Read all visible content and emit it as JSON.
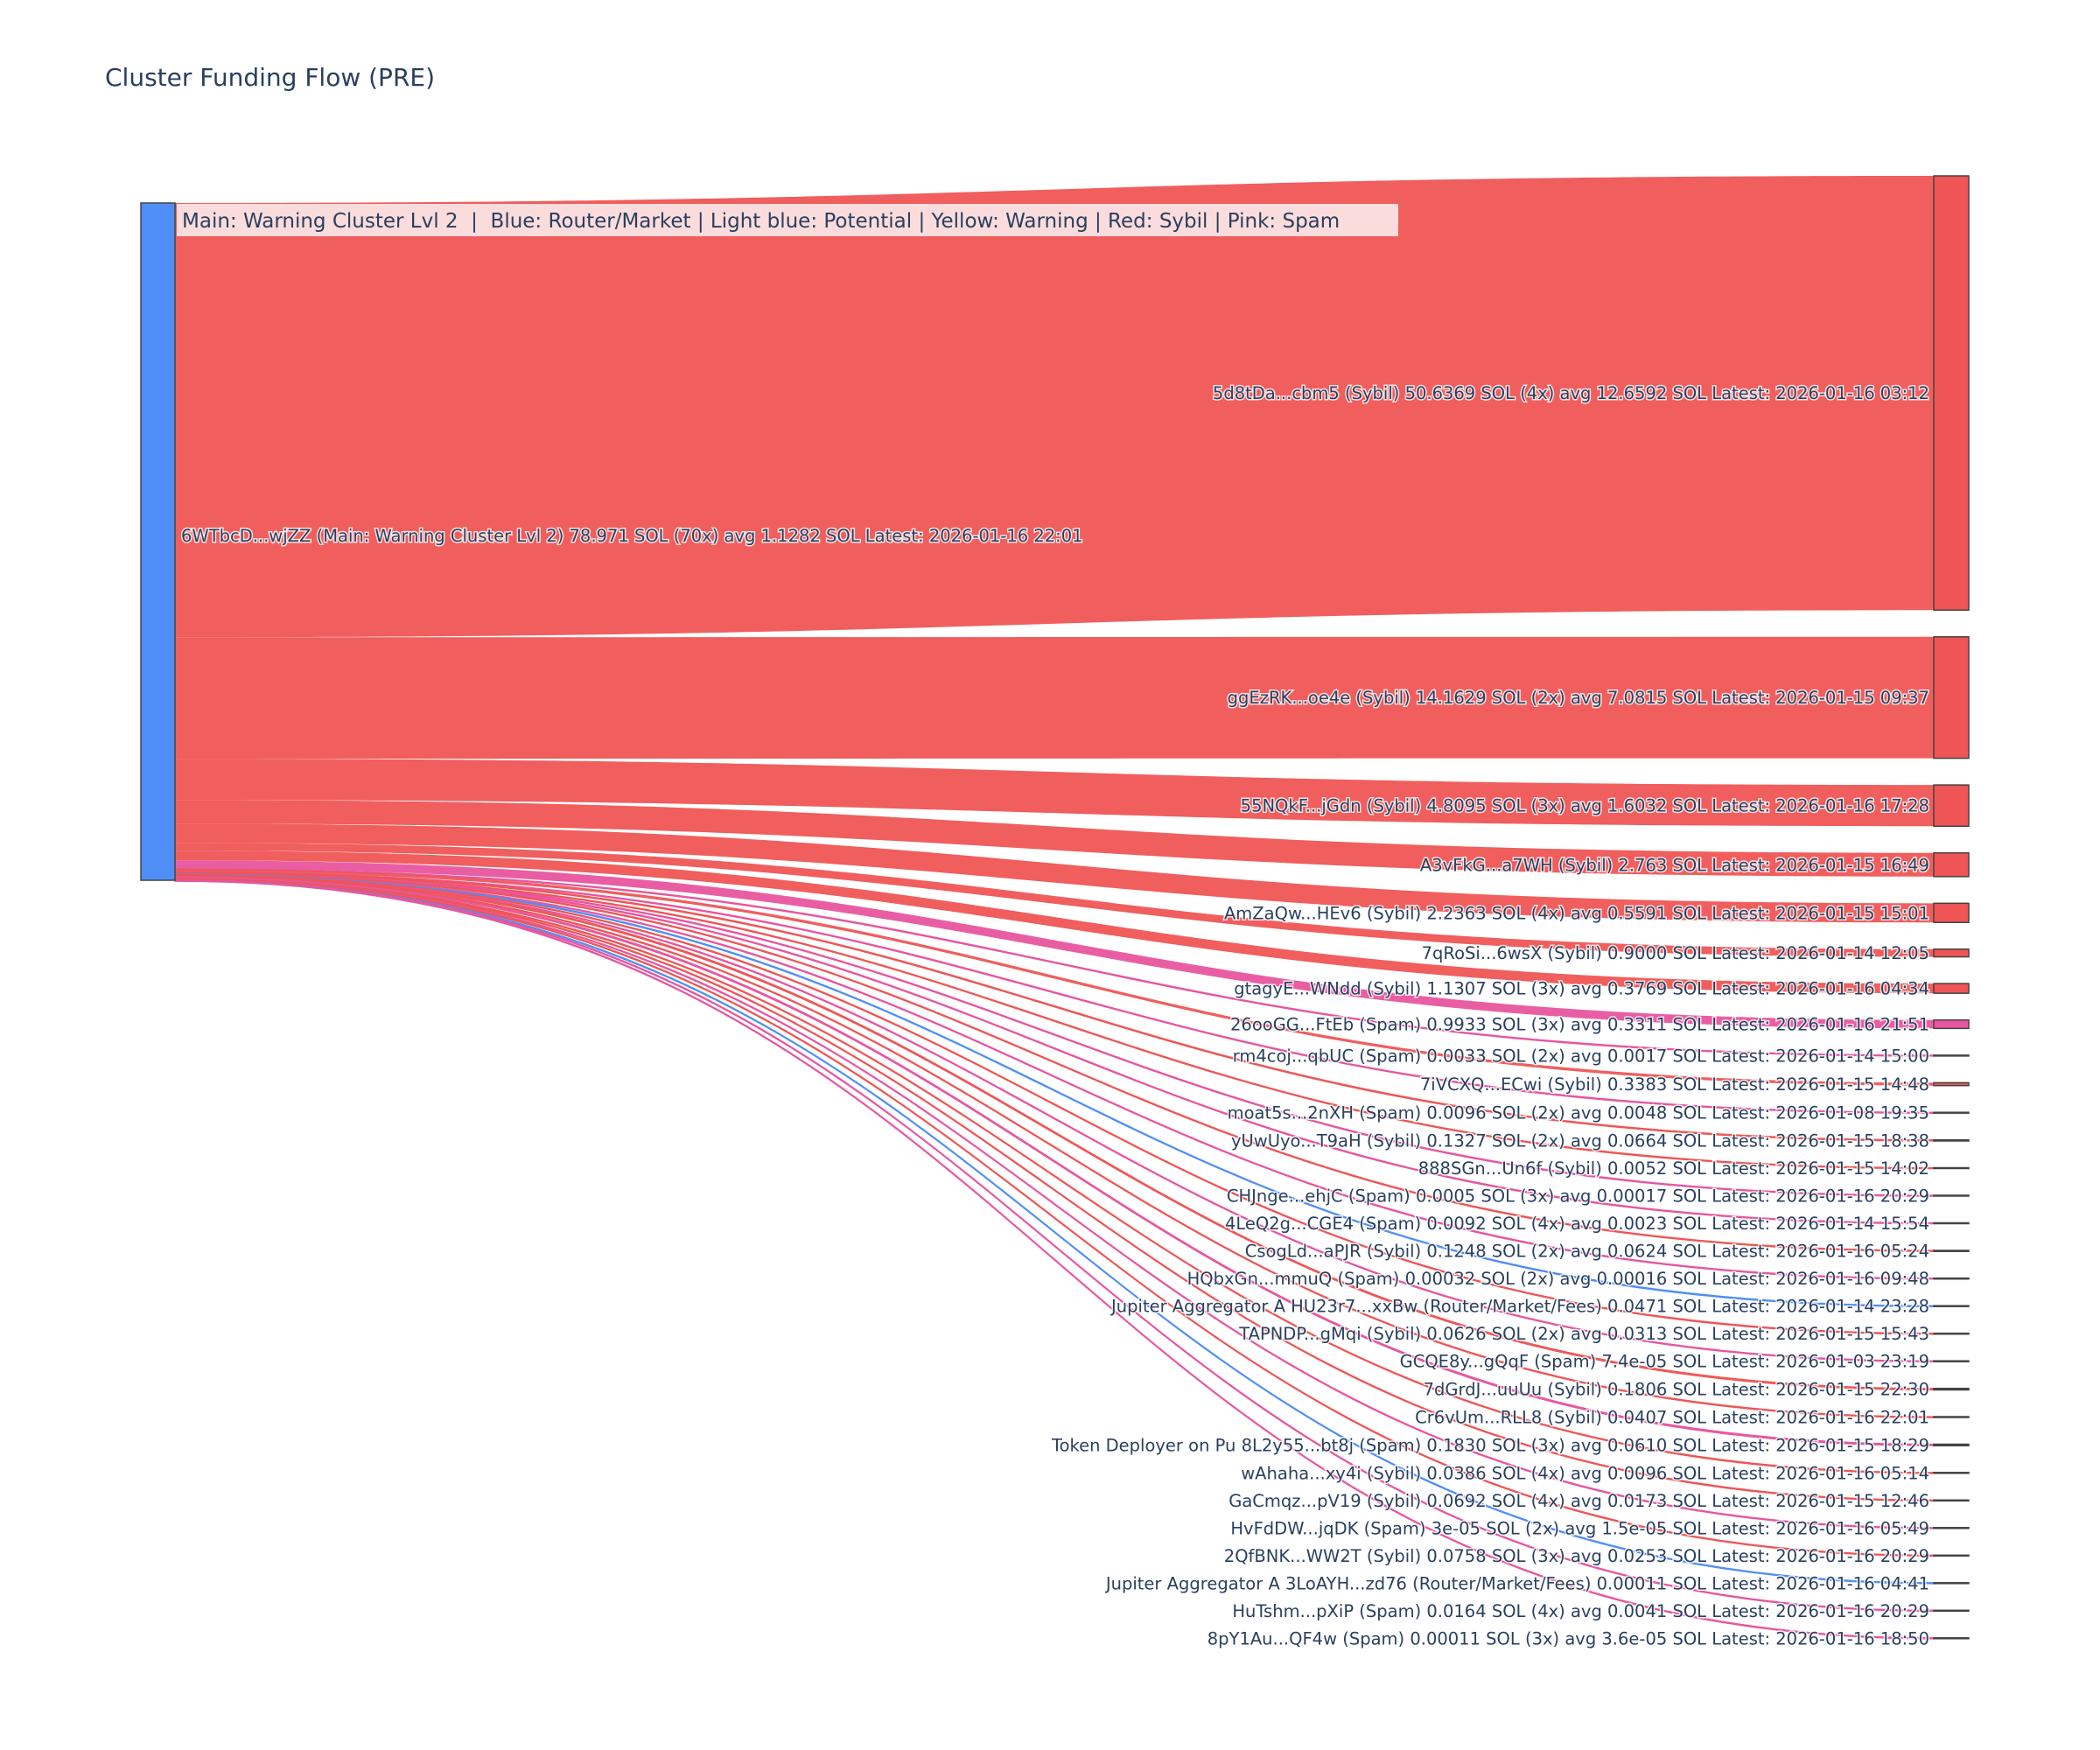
{
  "chart_data": {
    "type": "sankey",
    "title": "Cluster Funding Flow (PRE)",
    "legend_annotation": "Main: Warning Cluster Lvl 2  |  Blue: Router/Market | Light blue: Potential | Yellow: Warning | Red: Sybil | Pink: Spam",
    "category_colors": {
      "Main": "#4f8ef7",
      "Router": "#4f8ef7",
      "Sybil": "#ef5555",
      "Spam": "#e8559e"
    },
    "source": {
      "label": "6WTbcD...wjZZ (Main: Warning Cluster Lvl 2) 78.971 SOL (70x) avg 1.1282 SOL Latest: 2026-01-16 22:01",
      "value": 78.971,
      "category": "Main"
    },
    "targets": [
      {
        "label": "5d8tDa...cbm5 (Sybil) 50.6369 SOL (4x) avg 12.6592 SOL Latest: 2026-01-16 03:12",
        "value": 50.6369,
        "category": "Sybil"
      },
      {
        "label": "ggEzRK...oe4e (Sybil) 14.1629 SOL (2x) avg 7.0815 SOL Latest: 2026-01-15 09:37",
        "value": 14.1629,
        "category": "Sybil"
      },
      {
        "label": "55NQkF...jGdn (Sybil) 4.8095 SOL (3x) avg 1.6032 SOL Latest: 2026-01-16 17:28",
        "value": 4.8095,
        "category": "Sybil"
      },
      {
        "label": "A3vFkG...a7WH (Sybil) 2.763 SOL Latest: 2026-01-15 16:49",
        "value": 2.763,
        "category": "Sybil"
      },
      {
        "label": "AmZaQw...HEv6 (Sybil) 2.2363 SOL (4x) avg 0.5591 SOL Latest: 2026-01-15 15:01",
        "value": 2.2363,
        "category": "Sybil"
      },
      {
        "label": "7qRoSi...6wsX (Sybil) 0.9000 SOL Latest: 2026-01-14 12:05",
        "value": 0.9,
        "category": "Sybil"
      },
      {
        "label": "gtagyE...WNdd (Sybil) 1.1307 SOL (3x) avg 0.3769 SOL Latest: 2026-01-16 04:34",
        "value": 1.1307,
        "category": "Sybil"
      },
      {
        "label": "26ooGG...FtEb (Spam) 0.9933 SOL (3x) avg 0.3311 SOL Latest: 2026-01-16 21:51",
        "value": 0.9933,
        "category": "Spam"
      },
      {
        "label": "rm4coj...qbUC (Spam) 0.0033 SOL (2x) avg 0.0017 SOL Latest: 2026-01-14 15:00",
        "value": 0.0033,
        "category": "Spam"
      },
      {
        "label": "7iVCXQ...ECwi (Sybil) 0.3383 SOL Latest: 2026-01-15 14:48",
        "value": 0.3383,
        "category": "Sybil"
      },
      {
        "label": "moat5s...2nXH (Spam) 0.0096 SOL (2x) avg 0.0048 SOL Latest: 2026-01-08 19:35",
        "value": 0.0096,
        "category": "Spam"
      },
      {
        "label": "yUwUyo...T9aH (Sybil) 0.1327 SOL (2x) avg 0.0664 SOL Latest: 2026-01-15 18:38",
        "value": 0.1327,
        "category": "Sybil"
      },
      {
        "label": "888SGn...Un6f (Sybil) 0.0052 SOL Latest: 2026-01-15 14:02",
        "value": 0.0052,
        "category": "Sybil"
      },
      {
        "label": "CHJnge...ehjC (Spam) 0.0005 SOL (3x) avg 0.00017 SOL Latest: 2026-01-16 20:29",
        "value": 0.0005,
        "category": "Spam"
      },
      {
        "label": "4LeQ2g...CGE4 (Spam) 0.0092 SOL (4x) avg 0.0023 SOL Latest: 2026-01-14 15:54",
        "value": 0.0092,
        "category": "Spam"
      },
      {
        "label": "CsogLd...aPJR (Sybil) 0.1248 SOL (2x) avg 0.0624 SOL Latest: 2026-01-16 05:24",
        "value": 0.1248,
        "category": "Sybil"
      },
      {
        "label": "HQbxGn...mmuQ (Spam) 0.00032 SOL (2x) avg 0.00016 SOL Latest: 2026-01-16 09:48",
        "value": 0.00032,
        "category": "Spam"
      },
      {
        "label": "Jupiter Aggregator A HU23r7...xxBw (Router/Market/Fees) 0.0471 SOL Latest: 2026-01-14 23:28",
        "value": 0.0471,
        "category": "Router"
      },
      {
        "label": "TAPNDP...gMqi (Sybil) 0.0626 SOL (2x) avg 0.0313 SOL Latest: 2026-01-15 15:43",
        "value": 0.0626,
        "category": "Sybil"
      },
      {
        "label": "GCQE8y...gQqF (Spam) 7.4e-05 SOL Latest: 2026-01-03 23:19",
        "value": 7.4e-05,
        "category": "Spam"
      },
      {
        "label": "7dGrdJ...uuUu (Sybil) 0.1806 SOL Latest: 2026-01-15 22:30",
        "value": 0.1806,
        "category": "Sybil"
      },
      {
        "label": "Cr6vUm...RLL8 (Sybil) 0.0407 SOL Latest: 2026-01-16 22:01",
        "value": 0.0407,
        "category": "Sybil"
      },
      {
        "label": "Token Deployer on Pu 8L2y55...bt8j (Spam) 0.1830 SOL (3x) avg 0.0610 SOL Latest: 2026-01-15 18:29",
        "value": 0.183,
        "category": "Spam"
      },
      {
        "label": "wAhaha...xy4i (Sybil) 0.0386 SOL (4x) avg 0.0096 SOL Latest: 2026-01-16 05:14",
        "value": 0.0386,
        "category": "Sybil"
      },
      {
        "label": "GaCmqz...pV19 (Sybil) 0.0692 SOL (4x) avg 0.0173 SOL Latest: 2026-01-15 12:46",
        "value": 0.0692,
        "category": "Sybil"
      },
      {
        "label": "HvFdDW...jqDK (Spam) 3e-05 SOL (2x) avg 1.5e-05 SOL Latest: 2026-01-16 05:49",
        "value": 3e-05,
        "category": "Spam"
      },
      {
        "label": "2QfBNK...WW2T (Sybil) 0.0758 SOL (3x) avg 0.0253 SOL Latest: 2026-01-16 20:29",
        "value": 0.0758,
        "category": "Sybil"
      },
      {
        "label": "Jupiter Aggregator A 3LoAYH...zd76 (Router/Market/Fees) 0.00011 SOL Latest: 2026-01-16 04:41",
        "value": 0.00011,
        "category": "Router"
      },
      {
        "label": "HuTshm...pXiP (Spam) 0.0164 SOL (4x) avg 0.0041 SOL Latest: 2026-01-16 20:29",
        "value": 0.0164,
        "category": "Spam"
      },
      {
        "label": "8pY1Au...QF4w (Spam) 0.00011 SOL (3x) avg 3.6e-05 SOL Latest: 2026-01-16 18:50",
        "value": 0.00011,
        "category": "Spam"
      }
    ]
  }
}
